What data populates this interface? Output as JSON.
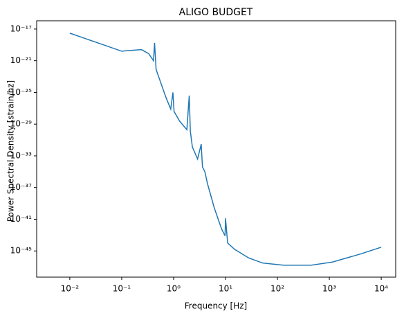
{
  "chart_data": {
    "type": "line",
    "title": "ALIGO BUDGET",
    "x_label": "Frequency [Hz]",
    "y_label": "Power Spectral Density [strain/hz]",
    "log_x": true,
    "log_y": true,
    "xlim": [
      0.0023,
      19000
    ],
    "ylim": [
      5e-49,
      1.1e-16
    ],
    "xticks": [
      {
        "value": 0.01,
        "label": "10⁻²"
      },
      {
        "value": 0.1,
        "label": "10⁻¹"
      },
      {
        "value": 1,
        "label": "10⁰"
      },
      {
        "value": 10,
        "label": "10¹"
      },
      {
        "value": 100,
        "label": "10²"
      },
      {
        "value": 1000,
        "label": "10³"
      },
      {
        "value": 10000,
        "label": "10⁴"
      }
    ],
    "yticks": [
      {
        "value": 1e-17,
        "label": "10⁻¹⁷"
      },
      {
        "value": 1e-21,
        "label": "10⁻²¹"
      },
      {
        "value": 1e-25,
        "label": "10⁻²⁵"
      },
      {
        "value": 1e-29,
        "label": "10⁻²⁹"
      },
      {
        "value": 1e-33,
        "label": "10⁻³³"
      },
      {
        "value": 1e-37,
        "label": "10⁻³⁷"
      },
      {
        "value": 1e-41,
        "label": "10⁻⁴¹"
      },
      {
        "value": 1e-45,
        "label": "10⁻⁴⁵"
      }
    ],
    "x": [
      0.01,
      0.045,
      0.1,
      0.15,
      0.24,
      0.33,
      0.41,
      0.43,
      0.46,
      0.52,
      0.71,
      0.88,
      0.97,
      1.02,
      1.3,
      1.8,
      2.0,
      2.1,
      2.3,
      2.9,
      3.4,
      3.6,
      4.0,
      4.5,
      6.1,
      8.4,
      9.8,
      10.0,
      11,
      15,
      28,
      52,
      130,
      450,
      1150,
      3900,
      10000
    ],
    "series": [
      {
        "color": "#1f77b4",
        "values": [
          3e-18,
          1e-19,
          1.6e-20,
          2e-20,
          2.5e-20,
          8e-21,
          1e-21,
          1.8e-19,
          8e-23,
          8e-24,
          2.5e-26,
          8e-28,
          1e-25,
          4e-28,
          2.5e-29,
          2e-30,
          4e-26,
          1.3e-30,
          1.3e-32,
          4e-34,
          3e-32,
          4e-35,
          1e-35,
          3e-37,
          2.5e-40,
          6e-43,
          8e-44,
          1.3e-41,
          1e-44,
          1.6e-45,
          1.3e-46,
          3e-47,
          1.6e-47,
          1.6e-47,
          4e-47,
          4e-46,
          3e-45
        ]
      }
    ]
  }
}
